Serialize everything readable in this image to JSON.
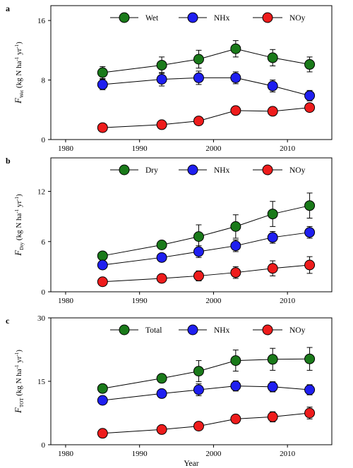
{
  "chart_data": [
    {
      "type": "line",
      "panel": "a",
      "ylabel_prefix": "F",
      "ylabel_sub": "Wet",
      "ylabel_unit": "(kg N ha",
      "ylabel_unit2": " yr",
      "sup": "-1",
      "xlim": [
        1978,
        2016
      ],
      "ylim": [
        0,
        18
      ],
      "xticks": [
        1980,
        1990,
        2000,
        2010
      ],
      "yticks": [
        0,
        8,
        16
      ],
      "x": [
        1985,
        1993,
        1998,
        2003,
        2008,
        2013
      ],
      "legend_position": "top",
      "series": [
        {
          "name": "Wet",
          "color": "#1a7a1a",
          "values": [
            9.0,
            10.0,
            10.8,
            12.2,
            11.0,
            10.1
          ],
          "err": [
            0.8,
            1.1,
            1.2,
            1.1,
            1.1,
            1.0
          ]
        },
        {
          "name": "NHx",
          "color": "#1f1ff0",
          "values": [
            7.4,
            8.1,
            8.3,
            8.3,
            7.2,
            5.9
          ],
          "err": [
            0.7,
            0.9,
            0.9,
            0.8,
            0.8,
            0.7
          ]
        },
        {
          "name": "NOy",
          "color": "#ee1c1c",
          "values": [
            1.6,
            2.0,
            2.5,
            3.9,
            3.8,
            4.3
          ],
          "err": [
            0.2,
            0.2,
            0.3,
            0.4,
            0.4,
            0.5
          ]
        }
      ]
    },
    {
      "type": "line",
      "panel": "b",
      "ylabel_prefix": "F",
      "ylabel_sub": "Dry",
      "ylabel_unit": "(kg N ha",
      "ylabel_unit2": " yr",
      "sup": "-1",
      "xlim": [
        1978,
        2016
      ],
      "ylim": [
        0,
        16
      ],
      "xticks": [
        1980,
        1990,
        2000,
        2010
      ],
      "yticks": [
        0,
        6,
        12
      ],
      "x": [
        1985,
        1993,
        1998,
        2003,
        2008,
        2013
      ],
      "legend_position": "top",
      "series": [
        {
          "name": "Dry",
          "color": "#1a7a1a",
          "values": [
            4.3,
            5.6,
            6.6,
            7.8,
            9.3,
            10.3
          ],
          "err": [
            0.3,
            0.4,
            1.4,
            1.4,
            1.5,
            1.5
          ]
        },
        {
          "name": "NHx",
          "color": "#1f1ff0",
          "values": [
            3.2,
            4.1,
            4.8,
            5.5,
            6.5,
            7.1
          ],
          "err": [
            0.3,
            0.4,
            0.7,
            0.7,
            0.7,
            0.7
          ]
        },
        {
          "name": "NOy",
          "color": "#ee1c1c",
          "values": [
            1.2,
            1.6,
            1.9,
            2.3,
            2.8,
            3.2
          ],
          "err": [
            0.2,
            0.3,
            0.6,
            0.7,
            0.9,
            1.0
          ]
        }
      ]
    },
    {
      "type": "line",
      "panel": "c",
      "ylabel_prefix": "F",
      "ylabel_sub": "TOT",
      "ylabel_unit": "(kg N ha",
      "ylabel_unit2": " yr",
      "sup": "-1",
      "xlabel": "Year",
      "xlim": [
        1978,
        2016
      ],
      "ylim": [
        0,
        30
      ],
      "xticks": [
        1980,
        1990,
        2000,
        2010
      ],
      "yticks": [
        0,
        15,
        30
      ],
      "x": [
        1985,
        1993,
        1998,
        2003,
        2008,
        2013
      ],
      "legend_position": "top",
      "series": [
        {
          "name": "Total",
          "color": "#1a7a1a",
          "values": [
            13.3,
            15.7,
            17.4,
            19.9,
            20.2,
            20.3
          ],
          "err": [
            0.4,
            0.5,
            2.5,
            2.5,
            2.6,
            2.7
          ]
        },
        {
          "name": "NHx",
          "color": "#1f1ff0",
          "values": [
            10.5,
            12.1,
            13.0,
            13.9,
            13.7,
            13.0
          ],
          "err": [
            0.4,
            0.5,
            1.4,
            1.2,
            1.2,
            1.2
          ]
        },
        {
          "name": "NOy",
          "color": "#ee1c1c",
          "values": [
            2.7,
            3.6,
            4.4,
            6.1,
            6.6,
            7.5
          ],
          "err": [
            0.3,
            0.4,
            0.8,
            1.0,
            1.2,
            1.4
          ]
        }
      ]
    }
  ]
}
